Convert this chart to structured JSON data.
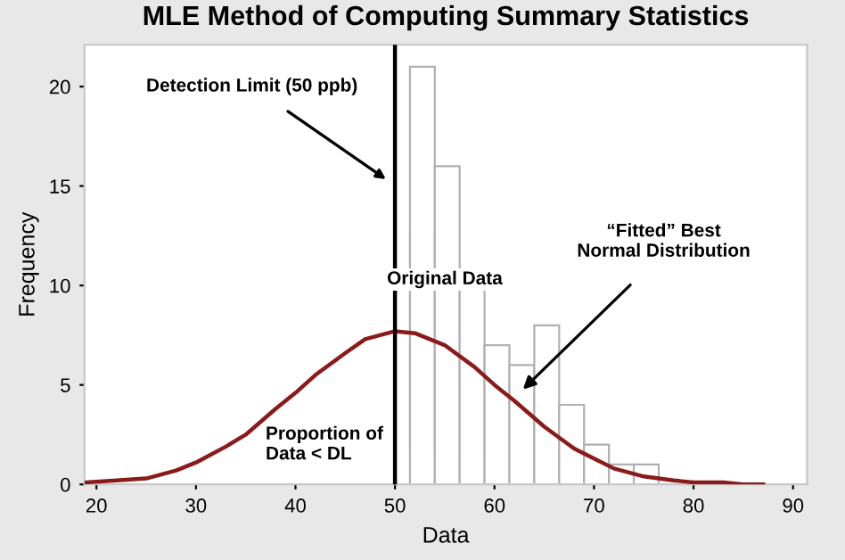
{
  "chart_data": {
    "type": "histogram",
    "title": "MLE Method of Computing Summary Statistics",
    "xlabel": "Data",
    "ylabel": "Frequency",
    "xlim": [
      18.8,
      91.4
    ],
    "ylim": [
      0,
      22.1
    ],
    "xticks": [
      20,
      30,
      40,
      50,
      60,
      70,
      80,
      90
    ],
    "yticks": [
      0,
      5,
      10,
      15,
      20
    ],
    "grid": false,
    "legend": false,
    "series": [
      {
        "color": "#ffffff",
        "bins": [
          51.5,
          54,
          56.5,
          59,
          61.5,
          64,
          66.5,
          69,
          71.5,
          74,
          76.5
        ],
        "values": [
          21,
          16,
          10,
          7,
          6,
          8,
          4,
          2,
          1,
          1
        ]
      },
      {
        "type": "line",
        "color": "#8b1a1a",
        "x": [
          19,
          22,
          25,
          28,
          30,
          33,
          35,
          38,
          40,
          42,
          45,
          47,
          50,
          52,
          55,
          58,
          60,
          62,
          65,
          68,
          70,
          72,
          75,
          78,
          80,
          83,
          85,
          87
        ],
        "values": [
          0.1,
          0.2,
          0.3,
          0.7,
          1.1,
          1.9,
          2.5,
          3.8,
          4.6,
          5.5,
          6.6,
          7.3,
          7.7,
          7.6,
          7.0,
          5.9,
          5.0,
          4.2,
          2.9,
          1.8,
          1.3,
          0.8,
          0.4,
          0.2,
          0.1,
          0.1,
          0,
          0
        ]
      }
    ],
    "ref_lines": [
      {
        "axis": "x",
        "value": 50,
        "label": "Detection Limit (50 ppb)",
        "color": "#000000"
      }
    ],
    "annotations": [
      "Original Data",
      "“Fitted” Best\nNormal Distribution",
      "Proportion of\nData < DL"
    ]
  }
}
